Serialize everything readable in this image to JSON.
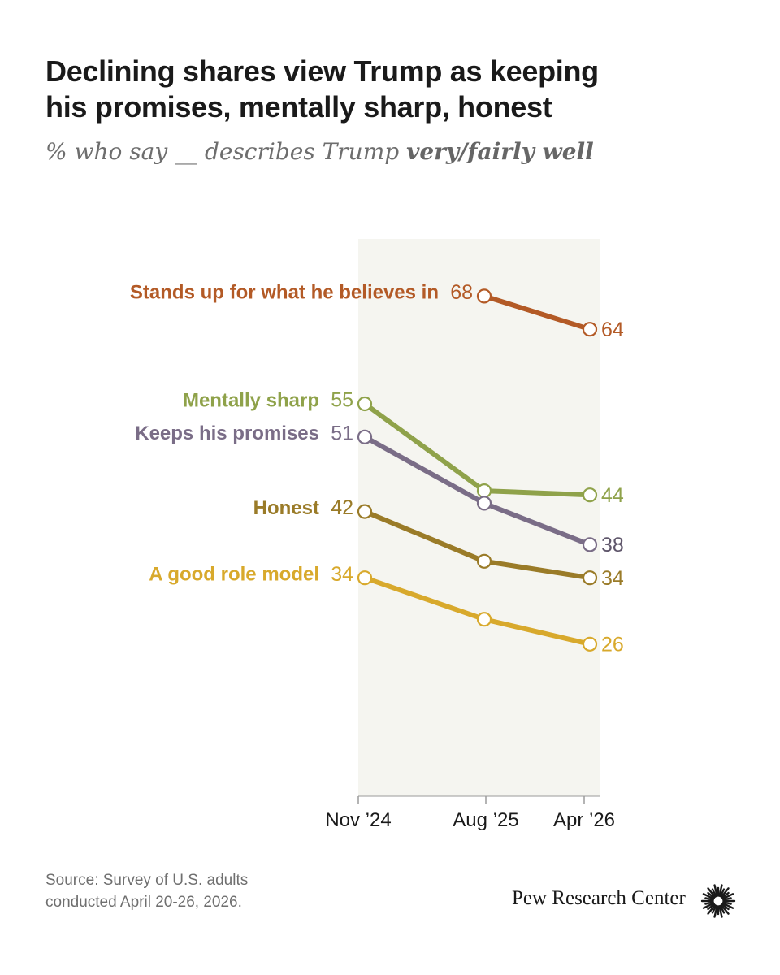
{
  "header": {
    "title_line1": "Declining shares view Trump as keeping",
    "title_line2": "his promises, mentally sharp, honest",
    "subtitle_prefix": "% who say __ describes Trump ",
    "subtitle_emphasis": "very/fairly well"
  },
  "chart_data": {
    "type": "line",
    "x": [
      "Nov ’24",
      "Aug ’25",
      "Apr ’26"
    ],
    "ylim": [
      0,
      100
    ],
    "highlight_band": [
      "Nov ’24",
      "Apr ’26"
    ],
    "series": [
      {
        "name": "Stands up for what he believes in",
        "color": "#b35a26",
        "values": [
          null,
          68,
          64
        ]
      },
      {
        "name": "Mentally sharp",
        "color": "#8fa24a",
        "values": [
          55,
          44.5,
          44
        ]
      },
      {
        "name": "Keeps his promises",
        "color": "#7a6d87",
        "values": [
          51,
          43,
          38
        ]
      },
      {
        "name": "Honest",
        "color": "#9a7b28",
        "values": [
          42,
          36,
          34
        ]
      },
      {
        "name": "A good role model",
        "color": "#d8a92c",
        "values": [
          34,
          29,
          26
        ]
      }
    ],
    "start_labels": [
      "68",
      "55",
      "51",
      "42",
      "34"
    ],
    "end_labels": [
      "64",
      "44",
      "38",
      "34",
      "26"
    ]
  },
  "footer": {
    "source_line1": "Source: Survey of U.S. adults",
    "source_line2": "conducted April 20-26, 2026.",
    "brand": "Pew Research Center",
    "logo_icon": "pew-sunburst-icon"
  }
}
